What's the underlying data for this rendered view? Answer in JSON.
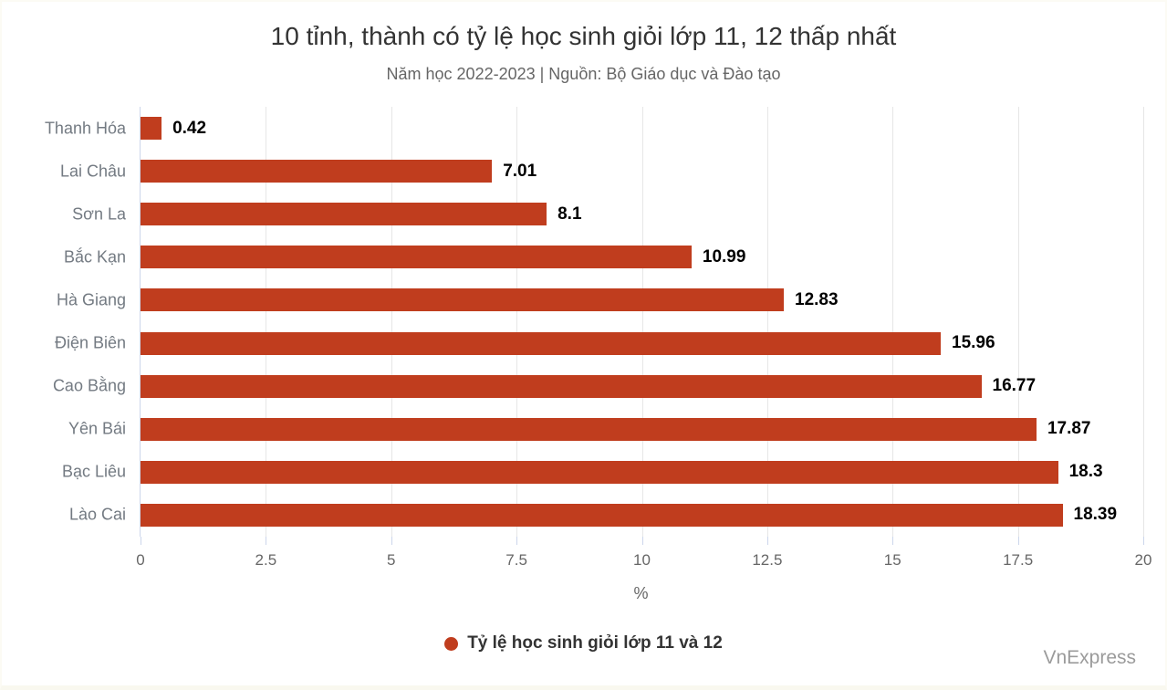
{
  "page": {
    "title": "10 tỉnh, thành có tỷ lệ học sinh giỏi lớp 11, 12 thấp nhất",
    "subtitle": "Năm học 2022-2023 | Nguồn: Bộ Giáo dục và Đào tạo",
    "watermark": "VnExpress"
  },
  "legend": {
    "position": "bottom",
    "items": [
      {
        "label": "Tỷ lệ học sinh giỏi lớp 11 và 12",
        "marker_shape": "circle",
        "marker_color": "#c03d1e"
      }
    ]
  },
  "chart_data": {
    "type": "bar",
    "orientation": "horizontal",
    "title": "10 tỉnh, thành có tỷ lệ học sinh giỏi lớp 11, 12 thấp nhất",
    "subtitle": "Năm học 2022-2023 | Nguồn: Bộ Giáo dục và Đào tạo",
    "categories": [
      "Thanh Hóa",
      "Lai Châu",
      "Sơn La",
      "Bắc Kạn",
      "Hà Giang",
      "Điện Biên",
      "Cao Bằng",
      "Yên Bái",
      "Bạc Liêu",
      "Lào Cai"
    ],
    "series": [
      {
        "name": "Tỷ lệ học sinh giỏi lớp 11 và 12",
        "values": [
          0.42,
          7.01,
          8.1,
          10.99,
          12.83,
          15.96,
          16.77,
          17.87,
          18.3,
          18.39
        ],
        "color": "#c03d1e"
      }
    ],
    "data_labels": [
      "0.42",
      "7.01",
      "8.1",
      "10.99",
      "12.83",
      "15.96",
      "16.77",
      "17.87",
      "18.3",
      "18.39"
    ],
    "xlabel": "%",
    "ylabel": "",
    "xlim": [
      0,
      20
    ],
    "xticks": [
      "0",
      "2.5",
      "5",
      "7.5",
      "10",
      "12.5",
      "15",
      "17.5",
      "20"
    ],
    "grid": true,
    "legend_position": "bottom"
  },
  "colors": {
    "bar": "#c03d1e",
    "axis_line": "#ccd6eb",
    "gridline": "#e6e6e6",
    "title_text": "#333333",
    "subtitle_text": "#666666",
    "category_label": "#737a82",
    "value_label": "#000000",
    "tick_label": "#666666",
    "legend_text": "#333333",
    "watermark_text": "#9b9b9b"
  }
}
